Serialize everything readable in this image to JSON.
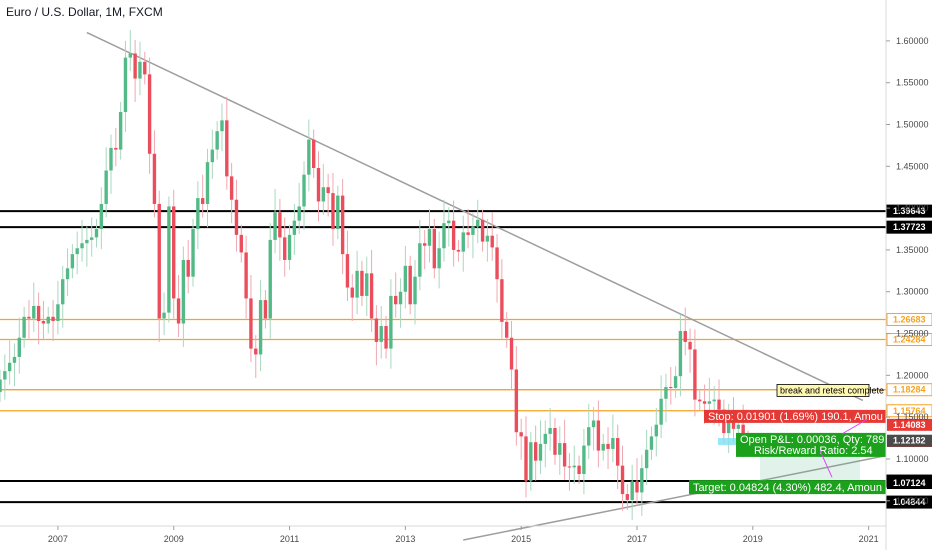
{
  "title": "Euro / U.S. Dollar, 1M, FXCM",
  "chart_data": {
    "type": "candlestick",
    "x_range": [
      2006.0,
      2021.3
    ],
    "y_range": [
      1.027,
      1.625
    ],
    "y_ticks": [
      "1.60000",
      "1.55000",
      "1.50000",
      "1.45000",
      "1.40000",
      "1.35000",
      "1.30000",
      "1.25000",
      "1.20000",
      "1.15000",
      "1.10000",
      "1.05000"
    ],
    "x_ticks": [
      "2007",
      "2009",
      "2011",
      "2013",
      "2015",
      "2017",
      "2019",
      "2021"
    ],
    "colors": {
      "up": "#53b987",
      "down": "#eb4d5c",
      "wick": "#8f8f8f",
      "orange": "#f5a323",
      "black": "#000000",
      "trend": "#9e9e9e"
    },
    "closes": [
      1.195,
      1.205,
      1.215,
      1.222,
      1.245,
      1.27,
      1.268,
      1.283,
      1.265,
      1.262,
      1.27,
      1.265,
      1.285,
      1.315,
      1.328,
      1.345,
      1.352,
      1.358,
      1.362,
      1.365,
      1.375,
      1.405,
      1.445,
      1.472,
      1.47,
      1.515,
      1.58,
      1.585,
      1.555,
      1.575,
      1.56,
      1.465,
      1.405,
      1.268,
      1.275,
      1.402,
      1.292,
      1.262,
      1.338,
      1.318,
      1.375,
      1.412,
      1.405,
      1.455,
      1.47,
      1.492,
      1.505,
      1.438,
      1.41,
      1.368,
      1.347,
      1.292,
      1.232,
      1.225,
      1.29,
      1.268,
      1.362,
      1.395,
      1.365,
      1.338,
      1.368,
      1.385,
      1.402,
      1.44,
      1.482,
      1.448,
      1.408,
      1.425,
      1.418,
      1.375,
      1.415,
      1.345,
      1.305,
      1.293,
      1.325,
      1.295,
      1.322,
      1.268,
      1.24,
      1.259,
      1.232,
      1.295,
      1.285,
      1.3,
      1.331,
      1.285,
      1.318,
      1.358,
      1.355,
      1.375,
      1.328,
      1.352,
      1.382,
      1.385,
      1.35,
      1.348,
      1.371,
      1.368,
      1.378,
      1.386,
      1.36,
      1.367,
      1.353,
      1.315,
      1.264,
      1.245,
      1.207,
      1.132,
      1.127,
      1.074,
      1.12,
      1.098,
      1.118,
      1.13,
      1.137,
      1.105,
      1.119,
      1.091,
      1.09,
      1.092,
      1.082,
      1.116,
      1.138,
      1.146,
      1.11,
      1.118,
      1.112,
      1.125,
      1.092,
      1.058,
      1.051,
      1.073,
      1.06,
      1.089,
      1.111,
      1.127,
      1.141,
      1.172,
      1.186,
      1.185,
      1.199,
      1.253,
      1.24,
      1.231,
      1.171,
      1.169,
      1.166,
      1.169,
      1.171,
      1.159,
      1.131,
      1.146,
      1.136,
      1.141,
      1.122,
      1.121
    ],
    "levels": [
      {
        "value": 1.39643,
        "label": "1.39643",
        "color": "black"
      },
      {
        "value": 1.37723,
        "label": "1.37723",
        "color": "black"
      },
      {
        "value": 1.26683,
        "label": "1.26683",
        "color": "orange"
      },
      {
        "value": 1.24284,
        "label": "1.24284",
        "color": "orange"
      },
      {
        "value": 1.18284,
        "label": "1.18284",
        "color": "orange"
      },
      {
        "value": 1.15764,
        "label": "1.15764",
        "color": "orange"
      },
      {
        "value": 1.07358,
        "label": "1.07358",
        "color": "black"
      },
      {
        "value": 1.04844,
        "label": "1.04844",
        "color": "black"
      }
    ],
    "trade_labels": [
      {
        "label": "1.14083",
        "value": 1.14083,
        "color": "#e53935"
      },
      {
        "label": "1.12146",
        "value": 1.12146,
        "color": "#e53935"
      },
      {
        "label": "1.12182",
        "value": 1.12182,
        "color": "#4a4a4a"
      },
      {
        "label": "1.07124",
        "value": 1.07124,
        "color": "#000000"
      }
    ],
    "annotations": {
      "retest": "break and retest complete",
      "stop": "Stop: 0.01901 (1.69%) 190.1, Amou",
      "open_pl": "Open P&L: 0.00036, Qty: 789",
      "rr": "Risk/Reward Ratio: 2.54",
      "target": "Target: 0.04824 (4.30%) 482.4, Amoun"
    }
  }
}
